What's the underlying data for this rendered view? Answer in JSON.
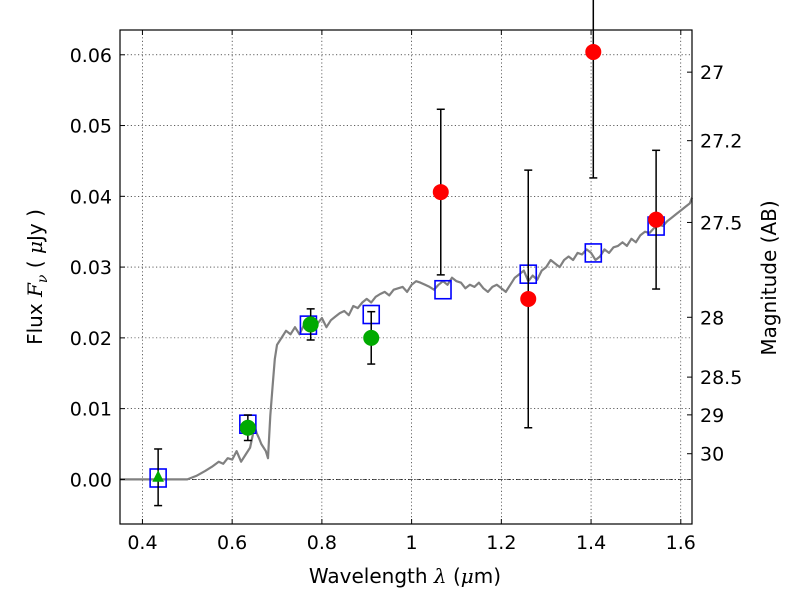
{
  "chart_data": {
    "type": "scatter",
    "title": "",
    "xlabel": "Wavelength",
    "xlabel_symbol": "λ",
    "xlabel_unit_open": " (",
    "xlabel_mu": "μ",
    "xlabel_unit_close": "m)",
    "ylabel": "Flux",
    "ylabel_symbol_F": "F",
    "ylabel_symbol_nu": "ν",
    "ylabel_unit_open": "( ",
    "ylabel_mu": "μ",
    "ylabel_unit_close": "Jy )",
    "y2label": "Magnitude (AB)",
    "xlim": [
      0.35,
      1.625
    ],
    "ylim": [
      -0.0063,
      0.0635
    ],
    "grid": true,
    "legend": "none",
    "x_ticks": [
      0.4,
      0.6,
      0.8,
      1.0,
      1.2,
      1.4,
      1.6
    ],
    "x_tick_labels": [
      "0.4",
      "0.6",
      "0.8",
      "1",
      "1.2",
      "1.4",
      "1.6"
    ],
    "y_ticks": [
      0.0,
      0.01,
      0.02,
      0.03,
      0.04,
      0.05,
      0.06
    ],
    "y_tick_labels": [
      "0.00",
      "0.01",
      "0.02",
      "0.03",
      "0.04",
      "0.05",
      "0.06"
    ],
    "y2_ticks": [
      {
        "mag": 27,
        "label": "27"
      },
      {
        "mag": 27.2,
        "label": "27.2"
      },
      {
        "mag": 27.5,
        "label": "27.5"
      },
      {
        "mag": 28,
        "label": "28"
      },
      {
        "mag": 28.5,
        "label": "28.5"
      },
      {
        "mag": 29,
        "label": "29"
      },
      {
        "mag": 30,
        "label": "30"
      }
    ],
    "colors": {
      "model": "#808080",
      "model_phot": "#0000ff",
      "green": "#00aa00",
      "red": "#ff0000",
      "errorbar": "#000000"
    },
    "series": [
      {
        "type": "line",
        "x": [
          0.35,
          0.5,
          0.52,
          0.54,
          0.555,
          0.57,
          0.58,
          0.59,
          0.6,
          0.61,
          0.62,
          0.63,
          0.64,
          0.65,
          0.655,
          0.66,
          0.665,
          0.67,
          0.675,
          0.68,
          0.685,
          0.69,
          0.695,
          0.7,
          0.71,
          0.72,
          0.73,
          0.74,
          0.75,
          0.76,
          0.77,
          0.78,
          0.79,
          0.8,
          0.81,
          0.82,
          0.83,
          0.84,
          0.85,
          0.86,
          0.87,
          0.88,
          0.89,
          0.9,
          0.91,
          0.92,
          0.93,
          0.94,
          0.95,
          0.96,
          0.97,
          0.98,
          0.99,
          1.0,
          1.01,
          1.02,
          1.03,
          1.04,
          1.05,
          1.06,
          1.07,
          1.08,
          1.09,
          1.1,
          1.11,
          1.12,
          1.13,
          1.14,
          1.15,
          1.16,
          1.17,
          1.18,
          1.19,
          1.2,
          1.21,
          1.22,
          1.23,
          1.24,
          1.25,
          1.26,
          1.27,
          1.28,
          1.29,
          1.3,
          1.31,
          1.32,
          1.33,
          1.34,
          1.35,
          1.36,
          1.37,
          1.38,
          1.39,
          1.4,
          1.41,
          1.42,
          1.43,
          1.44,
          1.45,
          1.46,
          1.47,
          1.48,
          1.49,
          1.5,
          1.51,
          1.52,
          1.53,
          1.54,
          1.55,
          1.56,
          1.57,
          1.58,
          1.59,
          1.6,
          1.61,
          1.62,
          1.625
        ],
        "y": [
          0.0,
          0.0,
          0.0005,
          0.0012,
          0.0018,
          0.0025,
          0.0022,
          0.003,
          0.0028,
          0.004,
          0.0025,
          0.0035,
          0.0045,
          0.0075,
          0.0065,
          0.0058,
          0.005,
          0.0045,
          0.004,
          0.003,
          0.009,
          0.013,
          0.017,
          0.019,
          0.02,
          0.021,
          0.0205,
          0.0215,
          0.0205,
          0.0218,
          0.0225,
          0.0212,
          0.022,
          0.0228,
          0.0215,
          0.0225,
          0.023,
          0.0235,
          0.0238,
          0.0232,
          0.0245,
          0.0242,
          0.025,
          0.0255,
          0.025,
          0.0258,
          0.0262,
          0.0265,
          0.026,
          0.0268,
          0.027,
          0.0272,
          0.0265,
          0.0275,
          0.028,
          0.0278,
          0.0275,
          0.0272,
          0.0268,
          0.0275,
          0.028,
          0.0275,
          0.0285,
          0.028,
          0.0278,
          0.027,
          0.0275,
          0.0272,
          0.0278,
          0.027,
          0.0265,
          0.0272,
          0.0275,
          0.027,
          0.0265,
          0.0275,
          0.0285,
          0.029,
          0.0295,
          0.028,
          0.0288,
          0.0282,
          0.0295,
          0.03,
          0.031,
          0.0305,
          0.03,
          0.031,
          0.0315,
          0.031,
          0.032,
          0.0318,
          0.0325,
          0.032,
          0.031,
          0.0315,
          0.0325,
          0.032,
          0.0328,
          0.033,
          0.0335,
          0.033,
          0.034,
          0.0335,
          0.0345,
          0.035,
          0.0348,
          0.0355,
          0.036,
          0.0358,
          0.0365,
          0.037,
          0.0375,
          0.038,
          0.0385,
          0.039,
          0.0398
        ]
      },
      {
        "type": "open-square",
        "x": [
          0.435,
          0.635,
          0.77,
          0.91,
          1.07,
          1.26,
          1.405,
          1.545
        ],
        "y": [
          0.0002,
          0.0078,
          0.0218,
          0.0233,
          0.0268,
          0.029,
          0.032,
          0.0358
        ]
      },
      {
        "type": "triangle",
        "x": [
          0.435
        ],
        "y": [
          0.0003
        ],
        "yerr": [
          0.004
        ]
      },
      {
        "type": "circle",
        "color": "green",
        "x": [
          0.635,
          0.775,
          0.91
        ],
        "y": [
          0.0073,
          0.0219,
          0.02
        ],
        "yerr": [
          0.0018,
          0.0022,
          0.0037
        ]
      },
      {
        "type": "circle",
        "color": "red",
        "x": [
          1.065,
          1.26,
          1.405,
          1.545
        ],
        "y": [
          0.0406,
          0.0255,
          0.0604,
          0.0367
        ],
        "yerr": [
          0.0117,
          0.0182,
          0.0178,
          0.0098
        ]
      }
    ]
  }
}
